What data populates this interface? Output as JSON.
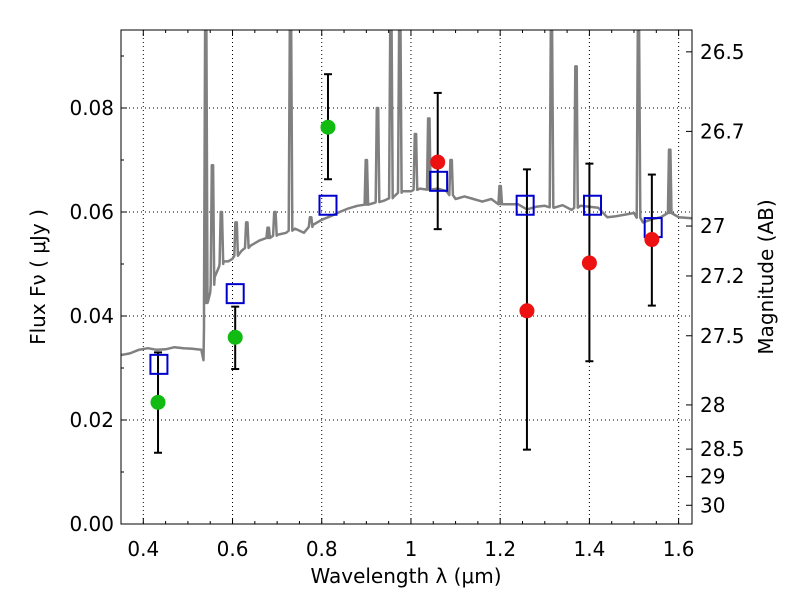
{
  "chart_data": {
    "type": "scatter",
    "xlabel": "Wavelength  λ (μm)",
    "ylabel": "Flux  Fν  ( μJy )",
    "ylabel_right": "Magnitude (AB)",
    "xlim": [
      0.35,
      1.63
    ],
    "ylim": [
      0.0,
      0.095
    ],
    "xticks": [
      0.4,
      0.6,
      0.8,
      1.0,
      1.2,
      1.4,
      1.6
    ],
    "xtick_labels": [
      "0.4",
      "0.6",
      "0.8",
      "1",
      "1.2",
      "1.4",
      "1.6"
    ],
    "yticks": [
      0.0,
      0.02,
      0.04,
      0.06,
      0.08
    ],
    "ytick_labels": [
      "0.00",
      "0.02",
      "0.04",
      "0.06",
      "0.08"
    ],
    "right_ticks": [
      {
        "label": "26.5",
        "flux": 0.0908
      },
      {
        "label": "26.7",
        "flux": 0.0755
      },
      {
        "label": "27",
        "flux": 0.0573
      },
      {
        "label": "27.2",
        "flux": 0.0477
      },
      {
        "label": "27.5",
        "flux": 0.0362
      },
      {
        "label": "28",
        "flux": 0.0229
      },
      {
        "label": "28.5",
        "flux": 0.0144
      },
      {
        "label": "29",
        "flux": 0.0091
      },
      {
        "label": "30",
        "flux": 0.0036
      }
    ],
    "grid": true,
    "colors": {
      "sed": "#808080",
      "model_box": "#0000cc",
      "green": "#11bb11",
      "red": "#ee1111",
      "errorbar": "#000000"
    },
    "series": [
      {
        "name": "green-detections",
        "marker": "circle",
        "x": [
          0.433,
          0.606,
          0.814
        ],
        "y": [
          0.0234,
          0.0359,
          0.0763
        ],
        "yerr_low": [
          0.0137,
          0.0298,
          0.0663
        ],
        "yerr_high": [
          0.033,
          0.0418,
          0.0865
        ]
      },
      {
        "name": "red-detections",
        "marker": "circle",
        "x": [
          1.06,
          1.26,
          1.4,
          1.54
        ],
        "y": [
          0.0696,
          0.041,
          0.0502,
          0.0547
        ],
        "yerr_low": [
          0.0567,
          0.0143,
          0.0313,
          0.042
        ],
        "yerr_high": [
          0.0829,
          0.0682,
          0.0693,
          0.0672
        ]
      },
      {
        "name": "model-photometry",
        "marker": "square",
        "x": [
          0.435,
          0.606,
          0.814,
          1.062,
          1.256,
          1.407,
          1.543
        ],
        "y": [
          0.0307,
          0.0443,
          0.0613,
          0.0659,
          0.0613,
          0.0613,
          0.057
        ]
      },
      {
        "name": "model-sed",
        "type": "line",
        "x": [
          0.35,
          0.37,
          0.39,
          0.41,
          0.43,
          0.45,
          0.47,
          0.49,
          0.51,
          0.53,
          0.535,
          0.536,
          0.54,
          0.545,
          0.55,
          0.56,
          0.57,
          0.58,
          0.59,
          0.6,
          0.62,
          0.64,
          0.66,
          0.68,
          0.7,
          0.72,
          0.74,
          0.76,
          0.78,
          0.8,
          0.82,
          0.84,
          0.86,
          0.88,
          0.9,
          0.92,
          0.94,
          0.96,
          0.98,
          1.0,
          1.02,
          1.04,
          1.06,
          1.08,
          1.1,
          1.12,
          1.14,
          1.16,
          1.18,
          1.2,
          1.22,
          1.24,
          1.26,
          1.28,
          1.3,
          1.32,
          1.34,
          1.36,
          1.38,
          1.4,
          1.42,
          1.44,
          1.46,
          1.48,
          1.5,
          1.52,
          1.54,
          1.56,
          1.58,
          1.6,
          1.63
        ],
        "y": [
          0.0325,
          0.0328,
          0.0335,
          0.0338,
          0.0335,
          0.0336,
          0.034,
          0.0338,
          0.0337,
          0.0335,
          0.0315,
          0.038,
          0.0425,
          0.0428,
          0.0445,
          0.0475,
          0.0495,
          0.0505,
          0.0505,
          0.051,
          0.0525,
          0.0535,
          0.0545,
          0.055,
          0.0556,
          0.056,
          0.0568,
          0.056,
          0.0575,
          0.0585,
          0.0592,
          0.06,
          0.0607,
          0.0612,
          0.0614,
          0.0618,
          0.0622,
          0.0628,
          0.064,
          0.064,
          0.0645,
          0.0643,
          0.0645,
          0.064,
          0.0625,
          0.063,
          0.0625,
          0.062,
          0.0625,
          0.0615,
          0.0615,
          0.0615,
          0.0605,
          0.061,
          0.0612,
          0.0608,
          0.0613,
          0.0604,
          0.0612,
          0.061,
          0.0608,
          0.059,
          0.0592,
          0.0595,
          0.0598,
          0.058,
          0.0586,
          0.059,
          0.0598,
          0.059,
          0.0588
        ],
        "spikes": [
          {
            "x": 0.54,
            "y": 0.095
          },
          {
            "x": 0.555,
            "y": 0.069
          },
          {
            "x": 0.575,
            "y": 0.06
          },
          {
            "x": 0.608,
            "y": 0.058
          },
          {
            "x": 0.632,
            "y": 0.058
          },
          {
            "x": 0.68,
            "y": 0.057
          },
          {
            "x": 0.695,
            "y": 0.06
          },
          {
            "x": 0.73,
            "y": 0.095
          },
          {
            "x": 0.775,
            "y": 0.059
          },
          {
            "x": 0.9,
            "y": 0.07
          },
          {
            "x": 0.925,
            "y": 0.08
          },
          {
            "x": 0.955,
            "y": 0.095
          },
          {
            "x": 0.975,
            "y": 0.095
          },
          {
            "x": 1.01,
            "y": 0.075
          },
          {
            "x": 1.04,
            "y": 0.078
          },
          {
            "x": 1.09,
            "y": 0.07
          },
          {
            "x": 1.2,
            "y": 0.065
          },
          {
            "x": 1.315,
            "y": 0.095
          },
          {
            "x": 1.37,
            "y": 0.088
          },
          {
            "x": 1.51,
            "y": 0.095
          },
          {
            "x": 1.58,
            "y": 0.072
          }
        ]
      }
    ]
  }
}
